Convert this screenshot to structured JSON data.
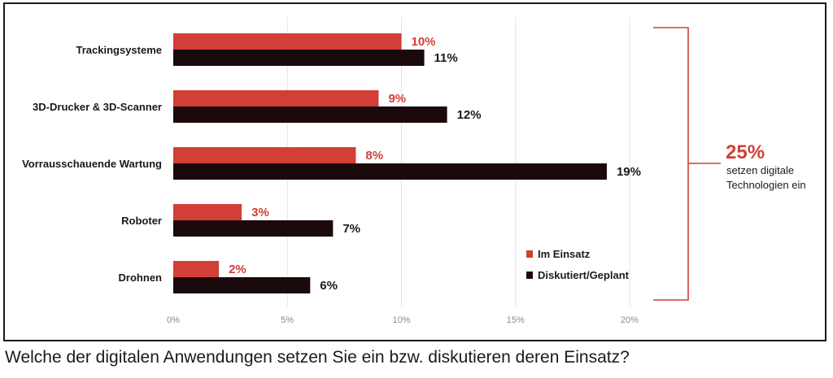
{
  "chart_data": {
    "type": "bar",
    "orientation": "horizontal",
    "categories": [
      "Trackingsysteme",
      "3D-Drucker & 3D-Scanner",
      "Vorrausschauende Wartung",
      "Roboter",
      "Drohnen"
    ],
    "series": [
      {
        "name": "Im Einsatz",
        "values": [
          10,
          9,
          8,
          3,
          2
        ],
        "color": "#d23f36"
      },
      {
        "name": "Diskutiert/Geplant",
        "values": [
          11,
          12,
          19,
          7,
          6
        ],
        "color": "#1b0a0b"
      }
    ],
    "value_labels": [
      [
        "10%",
        "9%",
        "8%",
        "3%",
        "2%"
      ],
      [
        "11%",
        "12%",
        "19%",
        "7%",
        "6%"
      ]
    ],
    "x_ticks": [
      "0%",
      "5%",
      "10%",
      "15%",
      "20%"
    ],
    "xlim": [
      0,
      20
    ],
    "grid": true,
    "legend_position": "bottom-right",
    "annotation": {
      "value": "25%",
      "text_line1": "setzen digitale",
      "text_line2": "Technologien ein"
    }
  },
  "caption": "Welche der digitalen Anwendungen setzen Sie ein bzw. diskutieren deren Einsatz?"
}
